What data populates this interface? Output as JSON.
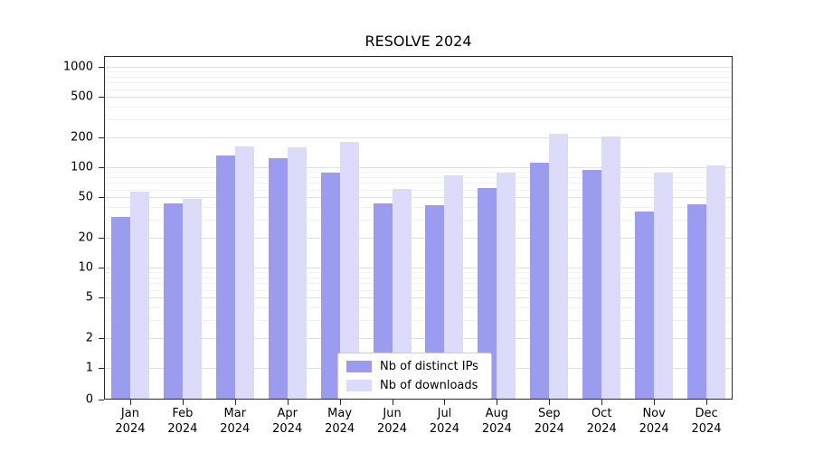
{
  "title": "RESOLVE 2024",
  "chart_data": {
    "type": "bar",
    "title": "RESOLVE 2024",
    "yscale": "symlog",
    "ylim": [
      0,
      1000
    ],
    "yticks": [
      0,
      1,
      2,
      5,
      10,
      20,
      50,
      100,
      200,
      500,
      1000
    ],
    "grid": "horizontal major and minor gridlines",
    "legend_position": "lower center inside plot",
    "categories": [
      "Jan",
      "Feb",
      "Mar",
      "Apr",
      "May",
      "Jun",
      "Jul",
      "Aug",
      "Sep",
      "Oct",
      "Nov",
      "Dec"
    ],
    "category_year": "2024",
    "series": [
      {
        "name": "Nb of distinct IPs",
        "color": "#9b9bef",
        "values": [
          32,
          44,
          130,
          122,
          88,
          44,
          42,
          62,
          112,
          93,
          36,
          43
        ]
      },
      {
        "name": "Nb of downloads",
        "color": "#dcdcfa",
        "values": [
          57,
          48,
          162,
          157,
          180,
          61,
          83,
          89,
          215,
          202,
          88,
          105
        ]
      }
    ]
  }
}
